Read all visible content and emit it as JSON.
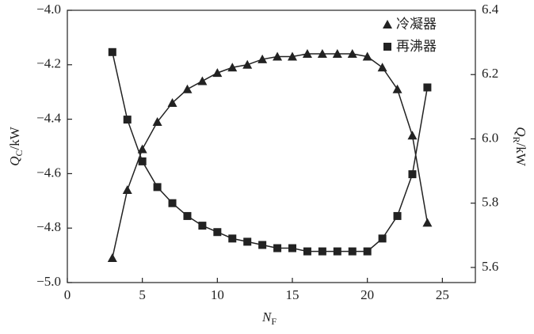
{
  "chart_data": {
    "type": "line",
    "x": [
      3,
      4,
      5,
      6,
      7,
      8,
      9,
      10,
      11,
      12,
      13,
      14,
      15,
      16,
      17,
      18,
      19,
      20,
      21,
      22,
      23,
      24
    ],
    "series": [
      {
        "name": "冷凝器",
        "marker": "triangle",
        "color": "#222222",
        "axis": "y",
        "values": [
          -4.91,
          -4.66,
          -4.51,
          -4.41,
          -4.34,
          -4.29,
          -4.26,
          -4.23,
          -4.21,
          -4.2,
          -4.18,
          -4.17,
          -4.17,
          -4.16,
          -4.16,
          -4.16,
          -4.16,
          -4.17,
          -4.21,
          -4.29,
          -4.46,
          -4.78
        ]
      },
      {
        "name": "再沸器",
        "marker": "square",
        "color": "#222222",
        "axis": "y2",
        "values": [
          6.27,
          6.06,
          5.93,
          5.85,
          5.8,
          5.76,
          5.73,
          5.71,
          5.69,
          5.68,
          5.67,
          5.66,
          5.66,
          5.65,
          5.65,
          5.65,
          5.65,
          5.65,
          5.69,
          5.76,
          5.89,
          6.16
        ]
      }
    ],
    "xlim": [
      0,
      27.2
    ],
    "xticks": [
      0,
      5,
      10,
      15,
      20,
      25
    ],
    "ylim": [
      -5,
      -4
    ],
    "yticks": [
      {
        "value": -5,
        "label": "−5.0"
      },
      {
        "value": -4.8,
        "label": "−4.8"
      },
      {
        "value": -4.6,
        "label": "−4.6"
      },
      {
        "value": -4.4,
        "label": "−4.4"
      },
      {
        "value": -4.2,
        "label": "−4.2"
      },
      {
        "value": -4,
        "label": "−4.0"
      }
    ],
    "y2lim": [
      5.553,
      6.4
    ],
    "y2ticks": [
      5.6,
      5.8,
      {
        "value": 6,
        "label": "6.0"
      },
      6.2,
      6.4
    ],
    "xlabel": [
      "N",
      "F"
    ],
    "ylabel": [
      "Q",
      "C",
      "/kW"
    ],
    "y2label": [
      "Q",
      "R",
      "/kW"
    ]
  }
}
